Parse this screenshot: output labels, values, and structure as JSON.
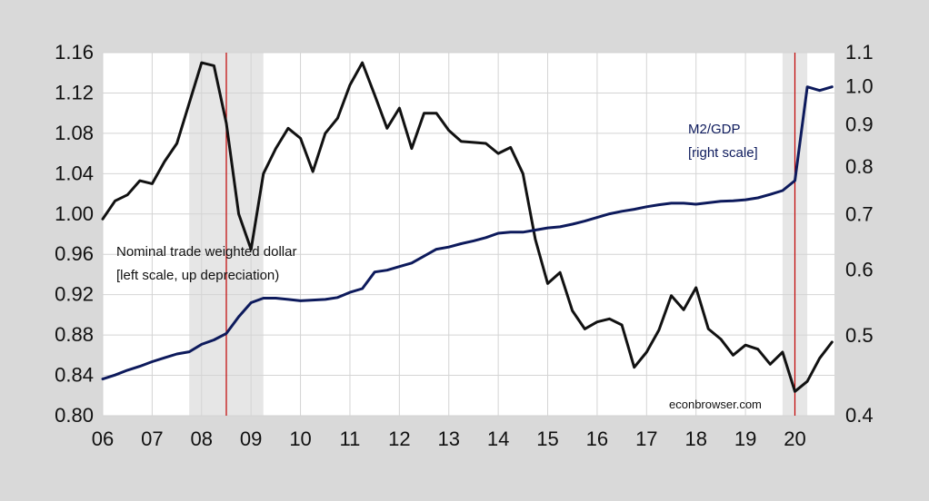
{
  "chart_data": {
    "type": "line",
    "title": "",
    "x_ticks": [
      "06",
      "07",
      "08",
      "09",
      "10",
      "11",
      "12",
      "13",
      "14",
      "15",
      "16",
      "17",
      "18",
      "19",
      "20"
    ],
    "left_axis": {
      "ticks": [
        "0.80",
        "0.84",
        "0.88",
        "0.92",
        "0.96",
        "1.00",
        "1.04",
        "1.08",
        "1.12",
        "1.16"
      ],
      "range": [
        0.8,
        1.16
      ],
      "scale": "linear"
    },
    "right_axis": {
      "ticks": [
        "0.4",
        "0.5",
        "0.6",
        "0.7",
        "0.8",
        "0.9",
        "1.0",
        "1.1"
      ],
      "range": [
        0.4,
        1.1
      ],
      "scale": "log"
    },
    "grid": true,
    "series": [
      {
        "name": "Nominal trade weighted dollar",
        "axis": "left",
        "color": "#111111",
        "x": [
          2006.0,
          2006.25,
          2006.5,
          2006.75,
          2007.0,
          2007.25,
          2007.5,
          2007.75,
          2008.0,
          2008.25,
          2008.5,
          2008.75,
          2009.0,
          2009.25,
          2009.5,
          2009.75,
          2010.0,
          2010.25,
          2010.5,
          2010.75,
          2011.0,
          2011.25,
          2011.5,
          2011.75,
          2012.0,
          2012.25,
          2012.5,
          2012.75,
          2013.0,
          2013.25,
          2013.5,
          2013.75,
          2014.0,
          2014.25,
          2014.5,
          2014.75,
          2015.0,
          2015.25,
          2015.5,
          2015.75,
          2016.0,
          2016.25,
          2016.5,
          2016.75,
          2017.0,
          2017.25,
          2017.5,
          2017.75,
          2018.0,
          2018.25,
          2018.5,
          2018.75,
          2019.0,
          2019.25,
          2019.5,
          2019.75,
          2020.0,
          2020.25,
          2020.5,
          2020.75
        ],
        "values": [
          0.995,
          1.013,
          1.019,
          1.033,
          1.03,
          1.052,
          1.07,
          1.11,
          1.15,
          1.147,
          1.09,
          1.0,
          0.965,
          1.04,
          1.065,
          1.085,
          1.075,
          1.042,
          1.08,
          1.095,
          1.128,
          1.15,
          1.118,
          1.085,
          1.105,
          1.065,
          1.1,
          1.1,
          1.083,
          1.072,
          1.071,
          1.07,
          1.06,
          1.066,
          1.04,
          0.975,
          0.931,
          0.942,
          0.904,
          0.886,
          0.893,
          0.896,
          0.89,
          0.848,
          0.863,
          0.885,
          0.919,
          0.905,
          0.927,
          0.886,
          0.876,
          0.86,
          0.87,
          0.866,
          0.851,
          0.863,
          0.824,
          0.834,
          0.857,
          0.873
        ]
      },
      {
        "name": "M2/GDP",
        "axis": "right",
        "color": "#0d1a5c",
        "x": [
          2006.0,
          2006.25,
          2006.5,
          2006.75,
          2007.0,
          2007.25,
          2007.5,
          2007.75,
          2008.0,
          2008.25,
          2008.5,
          2008.75,
          2009.0,
          2009.25,
          2009.5,
          2009.75,
          2010.0,
          2010.25,
          2010.5,
          2010.75,
          2011.0,
          2011.25,
          2011.5,
          2011.75,
          2012.0,
          2012.25,
          2012.5,
          2012.75,
          2013.0,
          2013.25,
          2013.5,
          2013.75,
          2014.0,
          2014.25,
          2014.5,
          2014.75,
          2015.0,
          2015.25,
          2015.5,
          2015.75,
          2016.0,
          2016.25,
          2016.5,
          2016.75,
          2017.0,
          2017.25,
          2017.5,
          2017.75,
          2018.0,
          2018.25,
          2018.5,
          2018.75,
          2019.0,
          2019.25,
          2019.5,
          2019.75,
          2020.0,
          2020.25,
          2020.5,
          2020.75
        ],
        "values": [
          0.443,
          0.448,
          0.454,
          0.459,
          0.465,
          0.47,
          0.475,
          0.478,
          0.488,
          0.494,
          0.503,
          0.527,
          0.548,
          0.555,
          0.555,
          0.553,
          0.551,
          0.552,
          0.553,
          0.556,
          0.564,
          0.57,
          0.597,
          0.6,
          0.606,
          0.612,
          0.624,
          0.636,
          0.64,
          0.646,
          0.651,
          0.657,
          0.665,
          0.667,
          0.667,
          0.671,
          0.675,
          0.677,
          0.682,
          0.688,
          0.695,
          0.702,
          0.707,
          0.711,
          0.716,
          0.72,
          0.723,
          0.723,
          0.721,
          0.724,
          0.727,
          0.728,
          0.73,
          0.734,
          0.741,
          0.749,
          0.77,
          1.0,
          0.99,
          1.0
        ]
      }
    ],
    "shaded_periods": [
      [
        2007.75,
        2009.25
      ],
      [
        2019.75,
        2020.25
      ]
    ],
    "vertical_lines": [
      2008.5,
      2020.0
    ],
    "annotations": {
      "dollar_label_line1": "Nominal trade weighted dollar",
      "dollar_label_line2": "[left scale, up depreciation)",
      "m2_label_line1": "M2/GDP",
      "m2_label_line2": "[right scale]",
      "credit": "econbrowser.com"
    },
    "colors": {
      "background": "#d9d9d9",
      "plot_area": "#ffffff",
      "recession_shade": "#e6e6e6",
      "vline": "#c00000",
      "grid": "#d4d4d4"
    }
  }
}
